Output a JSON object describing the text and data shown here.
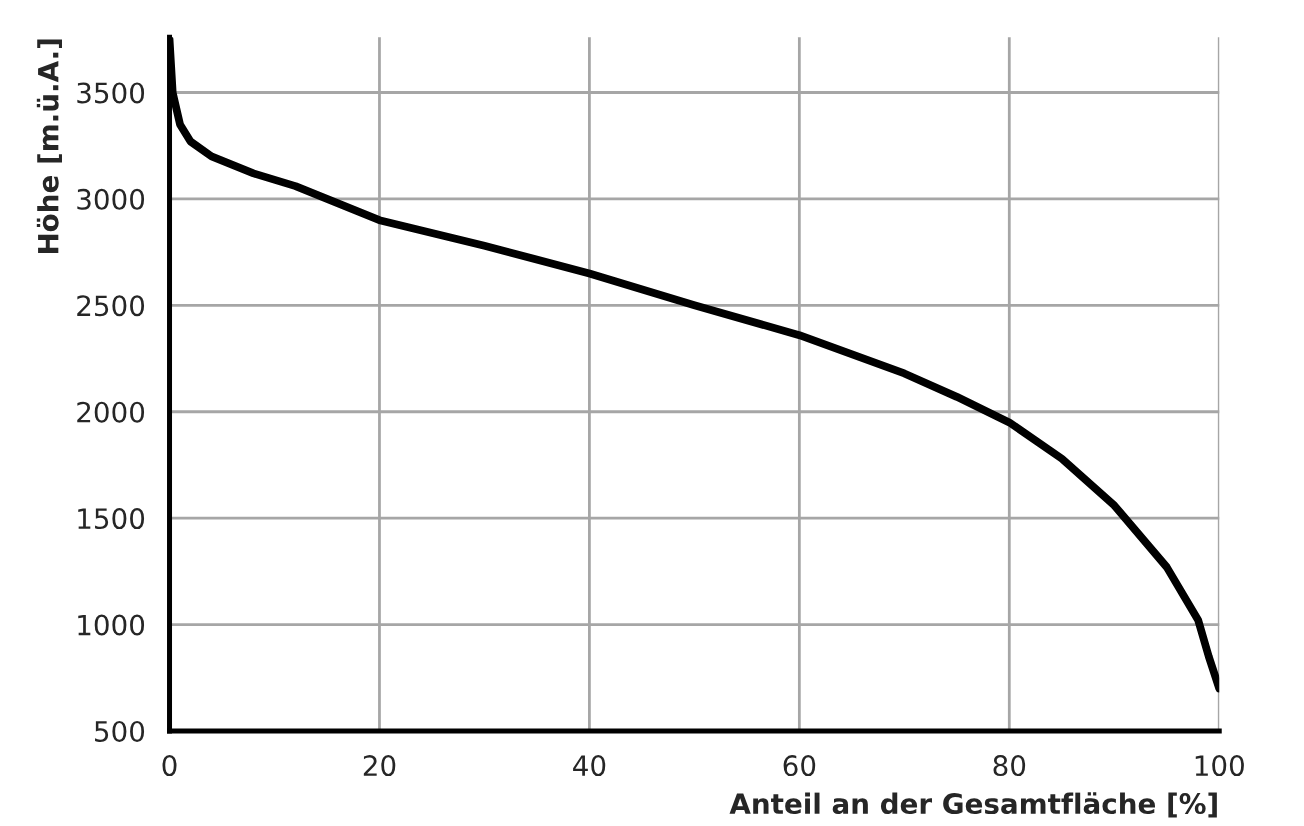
{
  "chart_data": {
    "type": "line",
    "xlabel": "Anteil an der Gesamtfläche [%]",
    "ylabel": "Höhe [m.ü.A.]",
    "x": [
      0,
      0.3,
      1,
      2,
      4,
      8,
      12,
      20,
      30,
      40,
      50,
      60,
      70,
      75,
      80,
      85,
      90,
      95,
      98,
      99,
      100
    ],
    "series": [
      {
        "color": "#000000",
        "values": [
          3750,
          3500,
          3350,
          3270,
          3200,
          3120,
          3060,
          2900,
          2780,
          2650,
          2500,
          2360,
          2180,
          2070,
          1950,
          1780,
          1560,
          1270,
          1020,
          850,
          700
        ]
      }
    ],
    "xlim": [
      0,
      100
    ],
    "xticks": [
      0,
      20,
      40,
      60,
      80,
      100
    ],
    "ylim": [
      500,
      3760
    ],
    "yticks": [
      500,
      1000,
      1500,
      2000,
      2500,
      3000,
      3500
    ],
    "grid": true,
    "legend": false,
    "marker": "none",
    "line_style": "solid"
  }
}
